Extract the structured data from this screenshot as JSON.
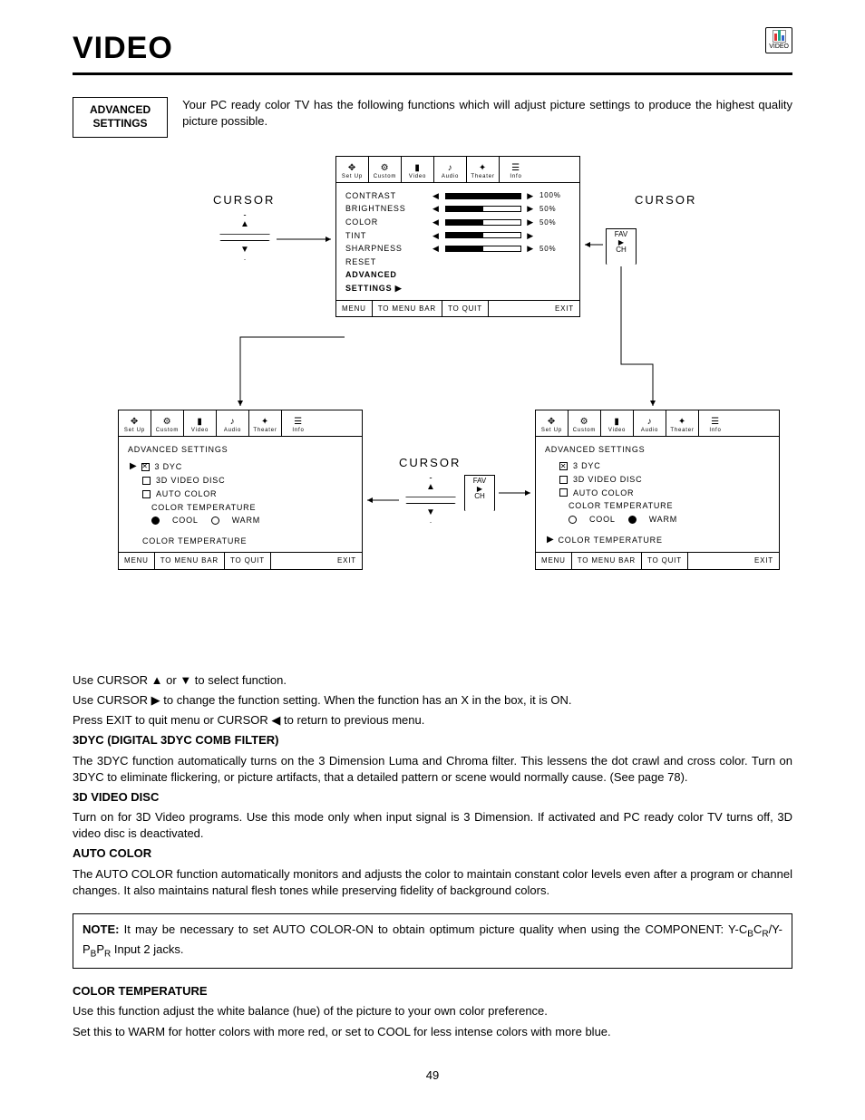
{
  "page": {
    "title": "VIDEO",
    "number": "49",
    "headerIconLabel": "VIDEO"
  },
  "advBox": {
    "line1": "ADVANCED",
    "line2": "SETTINGS"
  },
  "intro": "Your PC ready color TV has the following functions which will adjust picture settings to produce the highest quality picture possible.",
  "tabs": [
    "Set Up",
    "Custom",
    "Video",
    "Audio",
    "Theater",
    "Info"
  ],
  "tabIcons": [
    "✥",
    "⚙",
    "▮",
    "♪",
    "✦",
    "☰"
  ],
  "cursorWord": "CURSOR",
  "favch": {
    "l1": "FAV",
    "l2": "▶",
    "l3": "CH"
  },
  "mainPanel": {
    "rows": [
      {
        "label": "CONTRAST",
        "pct": 100,
        "val": "100%"
      },
      {
        "label": "BRIGHTNESS",
        "pct": 50,
        "val": "50%"
      },
      {
        "label": "COLOR",
        "pct": 50,
        "val": "50%"
      },
      {
        "label": "TINT",
        "pct": 50,
        "val": ""
      },
      {
        "label": "SHARPNESS",
        "pct": 50,
        "val": "50%"
      }
    ],
    "reset": "RESET",
    "adv1": "ADVANCED",
    "adv2": "SETTINGS ▶"
  },
  "footer": {
    "menu": "MENU",
    "bar": "TO MENU BAR",
    "quit": "TO QUIT",
    "exit": "EXIT"
  },
  "advPanel": {
    "heading": "ADVANCED SETTINGS",
    "items": [
      {
        "label": "3 DYC",
        "checked": true,
        "type": "chk"
      },
      {
        "label": "3D VIDEO DISC",
        "checked": false,
        "type": "chk"
      },
      {
        "label": "AUTO COLOR",
        "checked": false,
        "type": "chk"
      }
    ],
    "colorTempLabel": "COLOR TEMPERATURE",
    "cool": "COOL",
    "warm": "WARM",
    "leftCool": true,
    "leftWarm": false,
    "rightCool": false,
    "rightWarm": true,
    "bottom": "COLOR TEMPERATURE"
  },
  "instructions": [
    "Use CURSOR ▲ or ▼ to select function.",
    "Use CURSOR ▶ to change the function setting. When the function has an  X  in the box, it is ON.",
    "Press EXIT to quit menu or CURSOR ◀ to return to previous menu."
  ],
  "sections": {
    "s1h": "3DYC (DIGITAL 3DYC COMB FILTER)",
    "s1": "The 3DYC function automatically turns on the 3 Dimension Luma and Chroma filter. This lessens the dot crawl and cross color. Turn on 3DYC to eliminate flickering, or picture artifacts, that a detailed pattern or scene would normally cause. (See page 78).",
    "s2h": "3D VIDEO DISC",
    "s2": "Turn on for 3D Video programs. Use this mode only when input signal is 3 Dimension. If activated and PC ready color TV turns off, 3D video disc is deactivated.",
    "s3h": "AUTO COLOR",
    "s3": "The AUTO COLOR function automatically monitors and adjusts the color to maintain constant color levels even after a program or channel changes. It also maintains natural flesh tones while preserving fidelity of background colors.",
    "s4h": "COLOR TEMPERATURE",
    "s4a": "Use this function adjust the white balance (hue) of the picture to your own color preference.",
    "s4b": "Set this to WARM for hotter colors with more red, or set to COOL for less intense colors with more blue."
  },
  "note": {
    "label": "NOTE:",
    "text": "It may be necessary to set AUTO COLOR-ON to obtain optimum picture quality when using the COMPONENT: Y-C",
    "sub1": "B",
    "mid1": "C",
    "sub2": "R",
    "mid2": "/Y-P",
    "sub3": "B",
    "mid3": "P",
    "sub4": "R",
    "end": " Input 2 jacks."
  }
}
